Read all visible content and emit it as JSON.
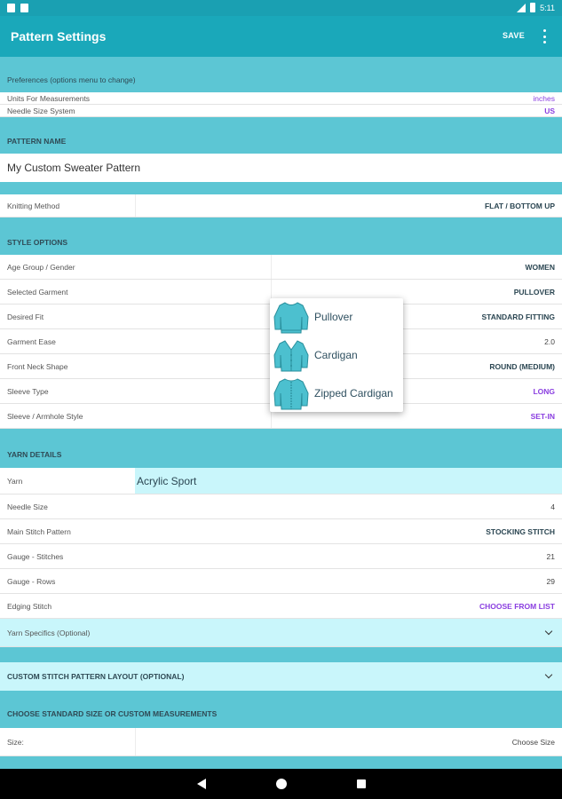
{
  "status": {
    "time": "5:11"
  },
  "appbar": {
    "title": "Pattern Settings",
    "save_label": "SAVE"
  },
  "preferences": {
    "header": "Preferences (options menu to change)",
    "units_label": "Units For Measurements",
    "units_value": "inches",
    "needle_label": "Needle Size System",
    "needle_value": "US"
  },
  "pattern_name": {
    "header": "PATTERN NAME",
    "value": "My Custom Sweater Pattern"
  },
  "knitting": {
    "label": "Knitting Method",
    "value": "FLAT / BOTTOM UP"
  },
  "style_options": {
    "header": "STYLE OPTIONS",
    "rows": [
      {
        "label": "Age Group / Gender",
        "value": "WOMEN"
      },
      {
        "label": "Selected Garment",
        "value": "PULLOVER"
      },
      {
        "label": "Desired Fit",
        "value": "STANDARD FITTING"
      },
      {
        "label": "Garment Ease",
        "value": "2.0"
      },
      {
        "label": "Front Neck Shape",
        "value": "ROUND (MEDIUM)"
      },
      {
        "label": "Sleeve Type",
        "value": "LONG"
      },
      {
        "label": "Sleeve / Armhole Style",
        "value": "SET-IN"
      }
    ]
  },
  "yarn_details": {
    "header": "YARN DETAILS",
    "yarn_label": "Yarn",
    "yarn_value": "Acrylic Sport",
    "rows": [
      {
        "label": "Needle Size",
        "value": "4"
      },
      {
        "label": "Main Stitch Pattern",
        "value": "STOCKING STITCH"
      },
      {
        "label": "Gauge - Stitches",
        "value": "21"
      },
      {
        "label": "Gauge - Rows",
        "value": "29"
      },
      {
        "label": "Edging Stitch",
        "value": "CHOOSE FROM LIST"
      }
    ],
    "specifics_label": "Yarn Specifics (Optional)"
  },
  "custom_layout": {
    "header": "CUSTOM STITCH PATTERN LAYOUT (OPTIONAL)"
  },
  "size_section": {
    "header": "CHOOSE STANDARD SIZE OR CUSTOM MEASUREMENTS",
    "size_label": "Size:",
    "size_value": "Choose Size"
  },
  "garment_menu": {
    "options": [
      "Pullover",
      "Cardigan",
      "Zipped Cardigan"
    ],
    "icon_color": "#4cc0cf"
  },
  "colors": {
    "appbar": "#1aa8ba",
    "section": "#5cc6d4",
    "accent_purple": "#8a3ee0",
    "highlight": "#c9f6fb"
  }
}
